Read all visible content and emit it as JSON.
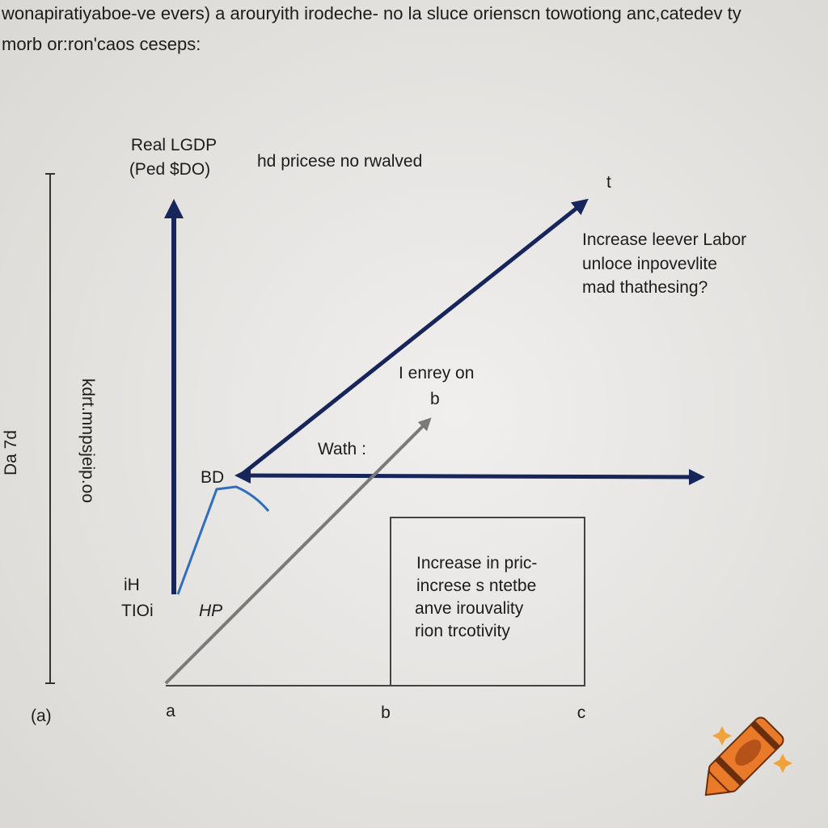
{
  "header": {
    "line1": "wonapiratiyaboe-ve evers) a arouryith irodeche- no la sluce orienscn towotiong anc,catedev ty",
    "line2": "morb or:ron'caos ceseps:"
  },
  "axis": {
    "title_line1": "Real LGDP",
    "title_line2": "(Ped $DO)",
    "side_label": "kdrt.mnpsjeip.oo",
    "far_side_label": "Da 7d"
  },
  "annotations": {
    "top": "hd pricese no rwalved",
    "arrow_tip": "t",
    "right_note": [
      "Increase leever Labor",
      "unloce inpovevlite",
      "mad thathesing?"
    ],
    "mid_note": [
      "I enrey on",
      "b"
    ],
    "wath": "Wath :",
    "bd": "BD",
    "ih": "iH",
    "tioi": "TIOi",
    "hp": "HP"
  },
  "box": [
    "Increase in pric-",
    "increse s ntetbe",
    "anve irouvality",
    "rion trcotivity"
  ],
  "bottom_labels": [
    "(a)",
    "a",
    "b",
    "c"
  ]
}
